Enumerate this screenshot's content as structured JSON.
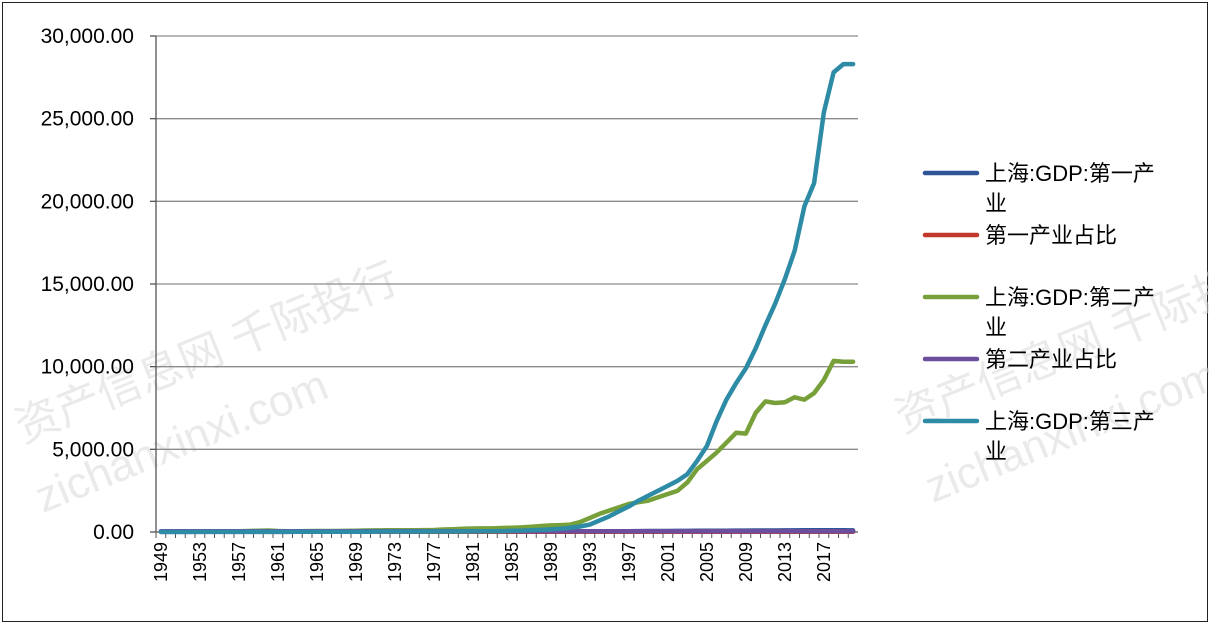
{
  "chart_data": {
    "type": "line",
    "title": "",
    "xlabel": "",
    "ylabel": "",
    "ylim": [
      0,
      30000
    ],
    "yticks": [
      "0.00",
      "5,000.00",
      "10,000.00",
      "15,000.00",
      "20,000.00",
      "25,000.00",
      "30,000.00"
    ],
    "x_tick_labels": [
      "1949",
      "1953",
      "1957",
      "1961",
      "1965",
      "1969",
      "1973",
      "1977",
      "1981",
      "1985",
      "1989",
      "1993",
      "1997",
      "2001",
      "2005",
      "2009",
      "2013",
      "2017"
    ],
    "grid": true,
    "legend_position": "right",
    "x": [
      1949,
      1950,
      1951,
      1952,
      1953,
      1954,
      1955,
      1956,
      1957,
      1958,
      1959,
      1960,
      1961,
      1962,
      1963,
      1964,
      1965,
      1966,
      1967,
      1968,
      1969,
      1970,
      1971,
      1972,
      1973,
      1974,
      1975,
      1976,
      1977,
      1978,
      1979,
      1980,
      1981,
      1982,
      1983,
      1984,
      1985,
      1986,
      1987,
      1988,
      1989,
      1990,
      1991,
      1992,
      1993,
      1994,
      1995,
      1996,
      1997,
      1998,
      1999,
      2000,
      2001,
      2002,
      2003,
      2004,
      2005,
      2006,
      2007,
      2008,
      2009,
      2010,
      2011,
      2012,
      2013,
      2014,
      2015,
      2016,
      2017,
      2018,
      2019,
      2020
    ],
    "series": [
      {
        "name": "上海:GDP:第一产业",
        "color": "#2F5597",
        "values": [
          4,
          5,
          6,
          7,
          7,
          7,
          8,
          8,
          8,
          9,
          9,
          9,
          9,
          9,
          10,
          10,
          10,
          10,
          11,
          11,
          11,
          11,
          12,
          12,
          13,
          13,
          14,
          14,
          15,
          16,
          17,
          18,
          18,
          19,
          19,
          20,
          20,
          21,
          22,
          23,
          24,
          25,
          26,
          28,
          30,
          35,
          40,
          45,
          50,
          55,
          58,
          60,
          62,
          65,
          68,
          70,
          72,
          75,
          80,
          82,
          84,
          88,
          90,
          92,
          95,
          98,
          100,
          100,
          100,
          100,
          100,
          95
        ]
      },
      {
        "name": "第一产业占比",
        "color": "#C0392B",
        "values": [
          10,
          10,
          10,
          10,
          10,
          10,
          10,
          10,
          10,
          10,
          10,
          10,
          10,
          10,
          10,
          10,
          10,
          10,
          10,
          10,
          10,
          10,
          10,
          10,
          10,
          10,
          10,
          10,
          10,
          10,
          10,
          10,
          10,
          10,
          10,
          10,
          10,
          10,
          10,
          10,
          10,
          10,
          10,
          10,
          10,
          10,
          10,
          10,
          10,
          10,
          10,
          10,
          10,
          10,
          10,
          10,
          10,
          10,
          10,
          10,
          10,
          10,
          10,
          10,
          10,
          10,
          10,
          10,
          10,
          10,
          10,
          10
        ]
      },
      {
        "name": "上海:GDP:第二产业",
        "color": "#77A03A",
        "values": [
          10,
          12,
          15,
          20,
          25,
          28,
          30,
          35,
          40,
          60,
          80,
          90,
          60,
          50,
          50,
          55,
          60,
          62,
          60,
          65,
          80,
          90,
          95,
          100,
          105,
          108,
          110,
          112,
          120,
          150,
          170,
          200,
          210,
          215,
          220,
          240,
          260,
          280,
          320,
          360,
          400,
          420,
          450,
          600,
          850,
          1100,
          1300,
          1500,
          1700,
          1800,
          1900,
          2100,
          2300,
          2500,
          3000,
          3800,
          4300,
          4800,
          5400,
          6000,
          5950,
          7200,
          7900,
          7800,
          7850,
          8150,
          8000,
          8400,
          9200,
          10350,
          10300,
          10300
        ]
      },
      {
        "name": "第二产业占比",
        "color": "#6B4F9E",
        "values": [
          50,
          50,
          50,
          50,
          50,
          50,
          50,
          50,
          50,
          50,
          50,
          50,
          50,
          50,
          50,
          50,
          50,
          50,
          50,
          50,
          50,
          50,
          50,
          50,
          50,
          50,
          50,
          50,
          50,
          50,
          50,
          50,
          50,
          50,
          50,
          50,
          50,
          50,
          50,
          50,
          50,
          50,
          50,
          50,
          50,
          50,
          50,
          50,
          50,
          50,
          50,
          50,
          50,
          50,
          50,
          50,
          50,
          50,
          50,
          50,
          50,
          50,
          50,
          50,
          50,
          50,
          50,
          50,
          50,
          50,
          50,
          50
        ]
      },
      {
        "name": "上海:GDP:第三产业",
        "color": "#2E8BA6",
        "values": [
          5,
          6,
          7,
          8,
          10,
          11,
          12,
          13,
          14,
          15,
          16,
          17,
          15,
          14,
          15,
          16,
          17,
          18,
          18,
          19,
          20,
          21,
          22,
          23,
          24,
          25,
          26,
          27,
          28,
          30,
          32,
          35,
          38,
          40,
          45,
          55,
          70,
          85,
          100,
          130,
          160,
          200,
          260,
          330,
          450,
          700,
          950,
          1250,
          1550,
          1900,
          2200,
          2500,
          2800,
          3100,
          3500,
          4300,
          5200,
          6700,
          8000,
          9000,
          9900,
          11100,
          12500,
          13800,
          15300,
          17000,
          19700,
          21100,
          25400,
          27800,
          28300,
          28300
        ]
      }
    ]
  },
  "watermarks": [
    "资产信息网 千际投行",
    "zichanxinxi.com"
  ]
}
